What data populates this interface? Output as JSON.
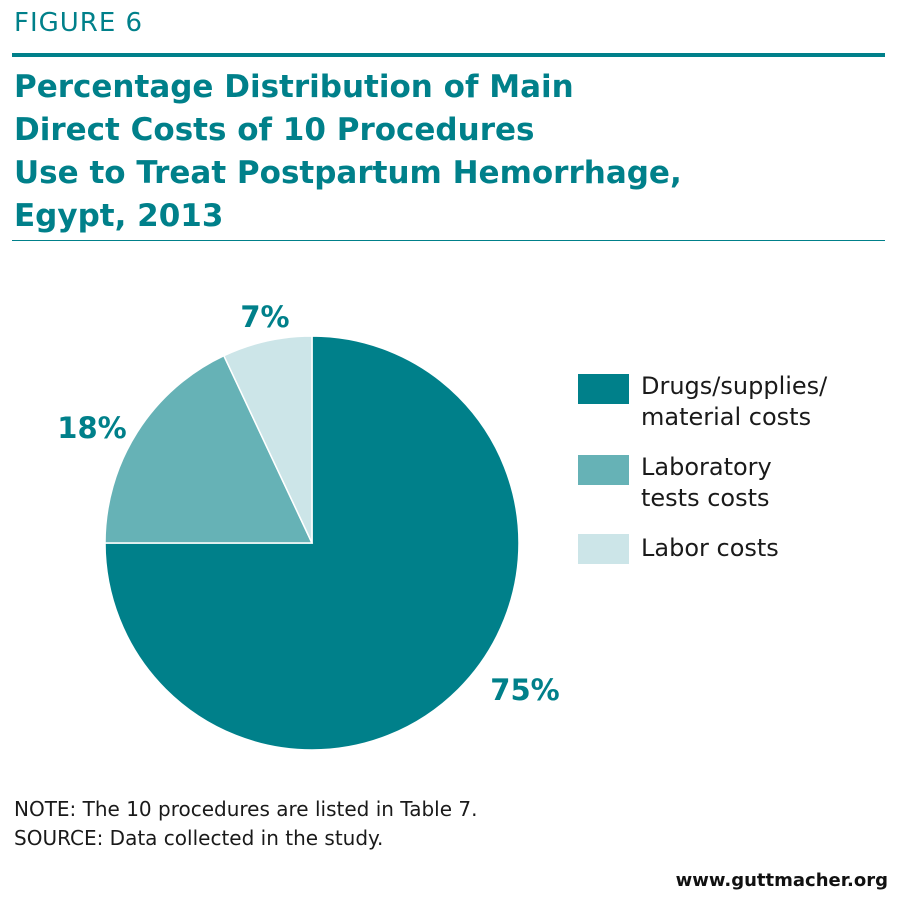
{
  "figure_label": "FIGURE 6",
  "title_lines": [
    "Percentage Distribution of Main",
    "Direct Costs of 10 Procedures",
    "Use to Treat Postpartum Hemorrhage,",
    "Egypt, 2013"
  ],
  "note_prefix": "NOTE:",
  "note_text": " The 10 procedures are listed in Table 7.",
  "source_prefix": "SOURCE:",
  "source_text": " Data collected in the study.",
  "website": "www.guttmacher.org",
  "colors": {
    "accent": "#00808a",
    "slice1": "#00808a",
    "slice2": "#66b2b6",
    "slice3": "#cce5e8"
  },
  "chart_data": {
    "type": "pie",
    "title": "Percentage Distribution of Main Direct Costs of 10 Procedures Use to Treat Postpartum Hemorrhage, Egypt, 2013",
    "slices": [
      {
        "label": "Drugs/supplies/ material costs",
        "value": 75,
        "display": "75%",
        "color": "#00808a"
      },
      {
        "label": "Laboratory tests costs",
        "value": 18,
        "display": "18%",
        "color": "#66b2b6"
      },
      {
        "label": "Labor costs",
        "value": 7,
        "display": "7%",
        "color": "#cce5e8"
      }
    ],
    "legend": {
      "position": "right",
      "entries": [
        {
          "lines": [
            "Drugs/supplies/",
            "material costs"
          ]
        },
        {
          "lines": [
            "Laboratory",
            "tests costs"
          ]
        },
        {
          "lines": [
            "Labor costs"
          ]
        }
      ]
    }
  }
}
